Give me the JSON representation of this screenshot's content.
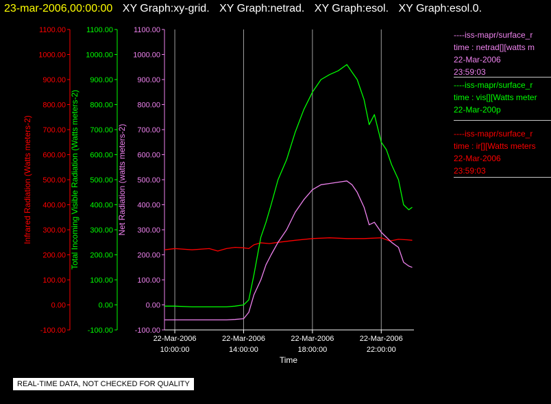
{
  "title_bar": {
    "timestamp": "23-mar-2006,00:00:00",
    "graphs": [
      "XY Graph:xy-grid.",
      "XY Graph:netrad.",
      "XY Graph:esol.",
      "XY Graph:esol.0."
    ]
  },
  "legend": {
    "netrad": {
      "line1": "----iss-mapr/surface_r",
      "line2": "time : netrad[][watts m",
      "line3": "22-Mar-2006",
      "line4": "23:59:03"
    },
    "vis": {
      "line1": "----iss-mapr/surface_r",
      "line2": "time : vis[][Watts meter",
      "line3": "22-Mar-200p"
    },
    "ir": {
      "line1": "----iss-mapr/surface_r",
      "line2": "time : ir[][Watts meters",
      "line3": "22-Mar-2006",
      "line4": "23:59:03"
    }
  },
  "quality_note": "REAL-TIME DATA, NOT CHECKED FOR QUALITY",
  "chart_data": {
    "type": "line",
    "xlabel": "Time",
    "x_unit": "hours of 22-Mar-2006",
    "xlim": [
      9.4,
      23.9
    ],
    "x_ticks": [
      {
        "x": 10,
        "date": "22-Mar-2006",
        "time": "10:00:00"
      },
      {
        "x": 14,
        "date": "22-Mar-2006",
        "time": "14:00:00"
      },
      {
        "x": 18,
        "date": "22-Mar-2006",
        "time": "18:00:00"
      },
      {
        "x": 22,
        "date": "22-Mar-2006",
        "time": "22:00:00"
      }
    ],
    "ylim": [
      -100,
      1100
    ],
    "y_ticks": [
      "-100.00",
      "0.00",
      "100.00",
      "200.00",
      "300.00",
      "400.00",
      "500.00",
      "600.00",
      "700.00",
      "800.00",
      "900.00",
      "1000.00",
      "1100.00"
    ],
    "axes": [
      {
        "key": "ir",
        "label": "Infrared Radiation (Watts meters-2)",
        "color": "#ff0000"
      },
      {
        "key": "vis",
        "label": "Total Incoming Visible Radiation (Watts meters-2)",
        "color": "#00ff00"
      },
      {
        "key": "netrad",
        "label": "Net Radiation (watts meters-2)",
        "color": "#ee82ee"
      }
    ],
    "grid": "vertical lines at time ticks",
    "series": [
      {
        "key": "ir",
        "color": "#ff0000",
        "x": [
          9.4,
          10,
          11,
          12,
          12.5,
          13,
          13.5,
          14,
          14.3,
          14.6,
          15,
          15.5,
          16,
          17,
          18,
          19,
          20,
          21,
          22,
          22.5,
          23,
          23.5,
          23.8
        ],
        "values": [
          220,
          225,
          220,
          225,
          215,
          225,
          230,
          228,
          225,
          240,
          248,
          245,
          250,
          258,
          265,
          268,
          265,
          265,
          268,
          255,
          262,
          260,
          258
        ]
      },
      {
        "key": "vis",
        "color": "#00ff00",
        "x": [
          9.4,
          10,
          11,
          12,
          13,
          13.5,
          14,
          14.3,
          14.6,
          15,
          15.3,
          15.6,
          16,
          16.5,
          17,
          17.5,
          18,
          18.5,
          19,
          19.5,
          20,
          20.3,
          20.6,
          21,
          21.3,
          21.6,
          22,
          22.3,
          22.6,
          23,
          23.3,
          23.6,
          23.8
        ],
        "values": [
          -5,
          -5,
          -8,
          -8,
          -8,
          -5,
          0,
          20,
          120,
          270,
          330,
          400,
          500,
          580,
          690,
          780,
          850,
          900,
          920,
          935,
          960,
          930,
          900,
          820,
          720,
          760,
          650,
          620,
          560,
          500,
          400,
          380,
          390
        ]
      },
      {
        "key": "netrad",
        "color": "#ee82ee",
        "x": [
          9.4,
          10,
          11,
          12,
          13,
          13.5,
          14,
          14.3,
          14.6,
          15,
          15.3,
          15.6,
          16,
          16.5,
          17,
          17.5,
          18,
          18.5,
          19,
          19.5,
          20,
          20.3,
          20.6,
          21,
          21.3,
          21.6,
          22,
          22.3,
          22.6,
          23,
          23.3,
          23.6,
          23.8
        ],
        "values": [
          -60,
          -60,
          -60,
          -60,
          -60,
          -58,
          -55,
          -30,
          40,
          100,
          160,
          200,
          250,
          300,
          370,
          420,
          460,
          480,
          485,
          490,
          495,
          480,
          450,
          390,
          320,
          330,
          290,
          270,
          250,
          230,
          170,
          155,
          150
        ]
      }
    ]
  }
}
